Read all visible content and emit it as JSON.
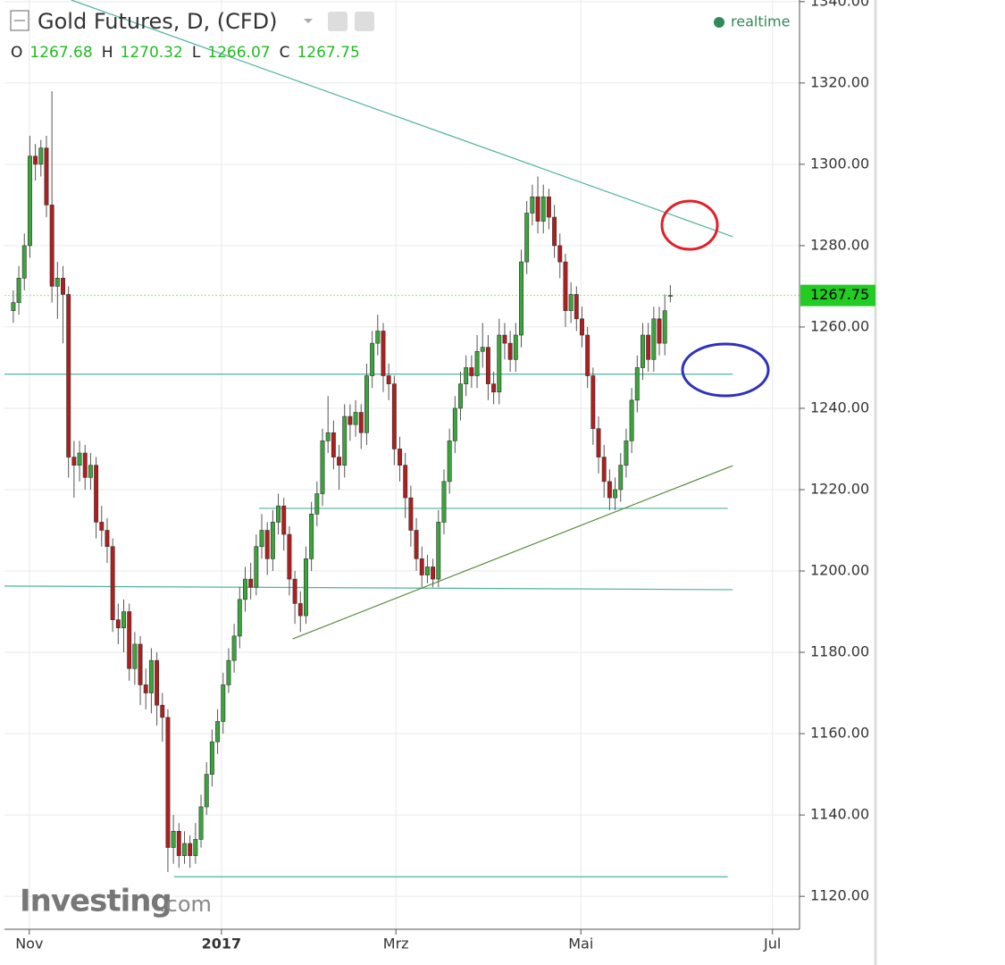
{
  "chart_data": {
    "type": "candlestick",
    "title": "Gold Futures, D, (CFD)",
    "status": "realtime",
    "ohlc_labels": [
      "O",
      "H",
      "L",
      "C"
    ],
    "watermark": "Investing",
    "watermark_suffix": ".com",
    "up_color": "#3aa53a",
    "down_color": "#b01e1e",
    "xlim": [
      -1.6,
      142.4
    ],
    "xticks": [
      {
        "value": 2.9,
        "label": "Nov"
      },
      {
        "value": 37.7,
        "label": "2017"
      },
      {
        "value": 69.3,
        "label": "Mrz"
      },
      {
        "value": 102.8,
        "label": "Mai"
      },
      {
        "value": 137.5,
        "label": "Jul"
      }
    ],
    "ylim": [
      1111.9,
      1340.4
    ],
    "yticks": [
      {
        "value": 1120,
        "label": "1120.00"
      },
      {
        "value": 1140,
        "label": "1140.00"
      },
      {
        "value": 1160,
        "label": "1160.00"
      },
      {
        "value": 1180,
        "label": "1180.00"
      },
      {
        "value": 1200,
        "label": "1200.00"
      },
      {
        "value": 1220,
        "label": "1220.00"
      },
      {
        "value": 1240,
        "label": "1240.00"
      },
      {
        "value": 1260,
        "label": "1260.00"
      },
      {
        "value": 1280,
        "label": "1280.00"
      },
      {
        "value": 1300,
        "label": "1300.00"
      },
      {
        "value": 1320,
        "label": "1320.00"
      },
      {
        "value": 1340,
        "label": "1340.00"
      }
    ],
    "grid": true,
    "open": [
      1264,
      1266,
      1272,
      1280,
      1302,
      1300,
      1304,
      1290,
      1270,
      1272,
      1268,
      1228,
      1226,
      1229,
      1223,
      1226,
      1212,
      1210,
      1206,
      1188,
      1186,
      1190,
      1176,
      1182,
      1172,
      1170,
      1178,
      1167,
      1164,
      1132,
      1136,
      1130,
      1133,
      1130,
      1134,
      1142,
      1150,
      1158,
      1163,
      1172,
      1178,
      1184,
      1193,
      1198,
      1196,
      1206,
      1210,
      1203,
      1212,
      1216,
      1209,
      1198,
      1192,
      1189,
      1203,
      1214,
      1219,
      1232,
      1234,
      1228,
      1226,
      1238,
      1236,
      1239,
      1234,
      1248,
      1256,
      1259,
      1248,
      1246,
      1230,
      1226,
      1218,
      1210,
      1203,
      1199,
      1201,
      1198,
      1212,
      1222,
      1232,
      1240,
      1246,
      1250,
      1248,
      1254,
      1255,
      1246,
      1244,
      1258,
      1256,
      1252,
      1258,
      1276,
      1288,
      1292,
      1286,
      1292,
      1287,
      1280,
      1276,
      1264,
      1268,
      1262,
      1258,
      1248,
      1235,
      1228,
      1222,
      1218,
      1220,
      1226,
      1232,
      1242,
      1250,
      1258,
      1252,
      1262,
      1256,
      1267.68
    ],
    "high": [
      1269,
      1275,
      1283,
      1307,
      1305,
      1306,
      1307,
      1318,
      1276,
      1275,
      1270,
      1232,
      1232,
      1231,
      1229,
      1228,
      1216,
      1213,
      1208,
      1192,
      1193,
      1192,
      1185,
      1184,
      1176,
      1181,
      1180,
      1170,
      1166,
      1140,
      1138,
      1136,
      1135,
      1138,
      1145,
      1153,
      1161,
      1166,
      1175,
      1181,
      1187,
      1196,
      1201,
      1202,
      1209,
      1214,
      1212,
      1215,
      1219,
      1218,
      1211,
      1200,
      1195,
      1206,
      1217,
      1222,
      1235,
      1243,
      1237,
      1231,
      1241,
      1241,
      1242,
      1241,
      1251,
      1259,
      1263,
      1261,
      1251,
      1248,
      1233,
      1229,
      1221,
      1213,
      1206,
      1204,
      1203,
      1215,
      1225,
      1235,
      1243,
      1249,
      1253,
      1253,
      1258,
      1261,
      1258,
      1249,
      1262,
      1261,
      1259,
      1261,
      1279,
      1291,
      1295,
      1297,
      1295,
      1294,
      1290,
      1283,
      1278,
      1271,
      1270,
      1265,
      1260,
      1250,
      1238,
      1231,
      1225,
      1223,
      1229,
      1235,
      1245,
      1253,
      1261,
      1261,
      1265,
      1265,
      1268,
      1270.32
    ],
    "low": [
      1261,
      1263,
      1269,
      1277,
      1296,
      1297,
      1287,
      1266,
      1262,
      1256,
      1223,
      1218,
      1222,
      1220,
      1220,
      1208,
      1206,
      1202,
      1185,
      1182,
      1180,
      1173,
      1172,
      1167,
      1166,
      1165,
      1162,
      1158,
      1126,
      1128,
      1127,
      1128,
      1127,
      1128,
      1132,
      1140,
      1147,
      1155,
      1160,
      1170,
      1175,
      1181,
      1190,
      1193,
      1194,
      1203,
      1199,
      1200,
      1209,
      1205,
      1194,
      1187,
      1185,
      1187,
      1200,
      1211,
      1216,
      1229,
      1225,
      1220,
      1223,
      1232,
      1233,
      1230,
      1231,
      1245,
      1253,
      1244,
      1242,
      1226,
      1222,
      1213,
      1206,
      1200,
      1196,
      1197,
      1196,
      1196,
      1209,
      1219,
      1229,
      1237,
      1243,
      1245,
      1245,
      1250,
      1242,
      1241,
      1241,
      1252,
      1249,
      1249,
      1255,
      1273,
      1285,
      1283,
      1283,
      1284,
      1277,
      1272,
      1260,
      1261,
      1259,
      1255,
      1245,
      1231,
      1224,
      1218,
      1215,
      1215,
      1217,
      1223,
      1229,
      1239,
      1247,
      1249,
      1249,
      1253,
      1253,
      1266.07
    ],
    "close": [
      1266,
      1272,
      1280,
      1302,
      1300,
      1304,
      1290,
      1270,
      1272,
      1268,
      1228,
      1226,
      1229,
      1223,
      1226,
      1212,
      1210,
      1206,
      1188,
      1186,
      1190,
      1176,
      1182,
      1172,
      1170,
      1178,
      1167,
      1164,
      1132,
      1136,
      1130,
      1133,
      1130,
      1134,
      1142,
      1150,
      1158,
      1163,
      1172,
      1178,
      1184,
      1193,
      1198,
      1196,
      1206,
      1210,
      1203,
      1212,
      1216,
      1209,
      1198,
      1192,
      1189,
      1203,
      1214,
      1219,
      1232,
      1234,
      1228,
      1226,
      1238,
      1236,
      1239,
      1234,
      1248,
      1256,
      1259,
      1248,
      1246,
      1230,
      1226,
      1218,
      1210,
      1203,
      1199,
      1201,
      1198,
      1212,
      1222,
      1232,
      1240,
      1246,
      1250,
      1248,
      1254,
      1255,
      1246,
      1244,
      1258,
      1256,
      1252,
      1258,
      1276,
      1288,
      1292,
      1286,
      1292,
      1287,
      1280,
      1276,
      1264,
      1268,
      1262,
      1258,
      1248,
      1235,
      1228,
      1222,
      1218,
      1220,
      1226,
      1232,
      1242,
      1250,
      1258,
      1252,
      1262,
      1256,
      1264,
      1267.75
    ],
    "lines": [
      {
        "x": [
          10.5,
          130.3
        ],
        "y": [
          1340.4,
          1282.2
        ],
        "color": "#4fb3a0"
      },
      {
        "x": [
          -1.6,
          130.3
        ],
        "y": [
          1248.4,
          1248.4
        ],
        "color": "#4fb3a0"
      },
      {
        "x": [
          44.5,
          129.4
        ],
        "y": [
          1215.4,
          1215.4
        ],
        "color": "#4fb3a0"
      },
      {
        "x": [
          -1.6,
          130.3
        ],
        "y": [
          1196.3,
          1195.4
        ],
        "color": "#4fb3a0"
      },
      {
        "x": [
          29.1,
          129.4
        ],
        "y": [
          1124.8,
          1124.8
        ],
        "color": "#4fb3a0"
      },
      {
        "x": [
          50.6,
          130.3
        ],
        "y": [
          1183.3,
          1225.9
        ],
        "color": "#5a8a3a"
      }
    ],
    "price_line_color": "#9be07a",
    "price_box_color": "#22cc22"
  }
}
